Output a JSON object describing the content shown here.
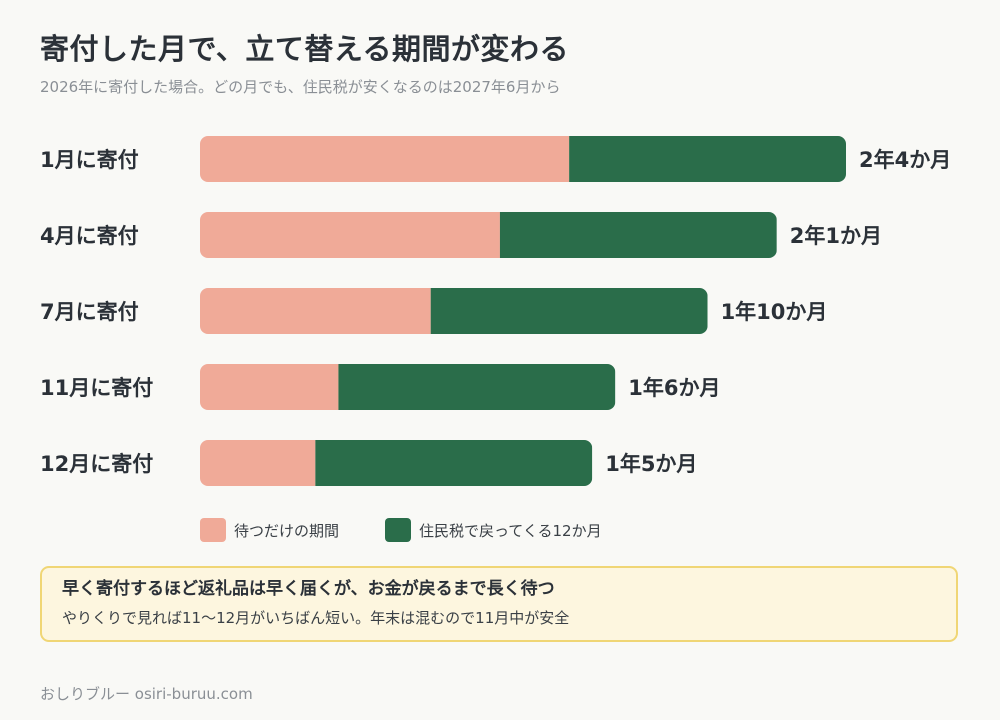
{
  "title": "寄付した月で、立て替える期間が変わる",
  "subtitle": "2026年に寄付した場合。どの月でも、住民税が安くなるのは2027年6月から",
  "colors": {
    "waiting": "#f0aa98",
    "refund": "#2a6d4a"
  },
  "legend": {
    "waiting": "待つだけの期間",
    "refund": "住民税で戻ってくる12か月"
  },
  "chart_data": {
    "type": "bar",
    "orientation": "horizontal",
    "stacked": true,
    "categories": [
      "1月に寄付",
      "4月に寄付",
      "7月に寄付",
      "11月に寄付",
      "12月に寄付"
    ],
    "series": [
      {
        "name": "待つだけの期間",
        "values": [
          16,
          13,
          10,
          6,
          5
        ]
      },
      {
        "name": "住民税で戻ってくる12か月",
        "values": [
          12,
          12,
          12,
          12,
          12
        ]
      }
    ],
    "data_labels": [
      "2年4か月",
      "2年1か月",
      "1年10か月",
      "1年6か月",
      "1年5か月"
    ],
    "unit": "か月",
    "xlim": [
      0,
      28
    ],
    "legend_position": "bottom",
    "grid": false
  },
  "note": {
    "headline": "早く寄付するほど返礼品は早く届くが、お金が戻るまで長く待つ",
    "body": "やりくりで見れば11〜12月がいちばん短い。年末は混むので11月中が安全"
  },
  "footer": "おしりブルー osiri-buruu.com"
}
